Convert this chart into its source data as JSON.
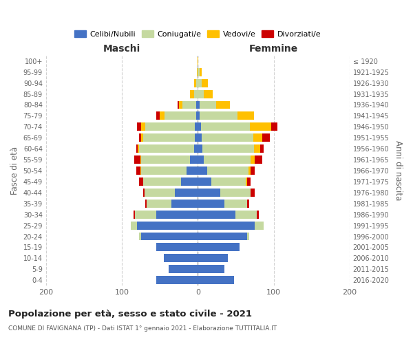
{
  "age_groups": [
    "0-4",
    "5-9",
    "10-14",
    "15-19",
    "20-24",
    "25-29",
    "30-34",
    "35-39",
    "40-44",
    "45-49",
    "50-54",
    "55-59",
    "60-64",
    "65-69",
    "70-74",
    "75-79",
    "80-84",
    "85-89",
    "90-94",
    "95-99",
    "100+"
  ],
  "birth_years": [
    "2016-2020",
    "2011-2015",
    "2006-2010",
    "2001-2005",
    "1996-2000",
    "1991-1995",
    "1986-1990",
    "1981-1985",
    "1976-1980",
    "1971-1975",
    "1966-1970",
    "1961-1965",
    "1956-1960",
    "1951-1955",
    "1946-1950",
    "1941-1945",
    "1936-1940",
    "1931-1935",
    "1926-1930",
    "1921-1925",
    "≤ 1920"
  ],
  "maschi_celibi": [
    55,
    38,
    45,
    55,
    75,
    80,
    55,
    35,
    30,
    22,
    15,
    10,
    5,
    4,
    4,
    2,
    2,
    0,
    0,
    0,
    0
  ],
  "maschi_coniugati": [
    0,
    0,
    0,
    0,
    2,
    8,
    28,
    32,
    40,
    50,
    60,
    65,
    72,
    68,
    65,
    42,
    18,
    5,
    2,
    0,
    0
  ],
  "maschi_vedovi": [
    0,
    0,
    0,
    0,
    0,
    0,
    0,
    0,
    0,
    0,
    1,
    1,
    2,
    3,
    6,
    6,
    5,
    5,
    3,
    1,
    0
  ],
  "maschi_divorziati": [
    0,
    0,
    0,
    0,
    0,
    0,
    2,
    2,
    2,
    5,
    5,
    8,
    2,
    2,
    5,
    5,
    2,
    0,
    0,
    0,
    0
  ],
  "femmine_celibi": [
    48,
    35,
    40,
    55,
    65,
    75,
    50,
    35,
    30,
    18,
    12,
    8,
    6,
    5,
    4,
    2,
    2,
    0,
    0,
    0,
    0
  ],
  "femmine_coniugati": [
    0,
    0,
    0,
    0,
    3,
    12,
    28,
    30,
    40,
    45,
    55,
    62,
    68,
    68,
    65,
    50,
    22,
    8,
    5,
    2,
    0
  ],
  "femmine_vedovi": [
    0,
    0,
    0,
    0,
    0,
    0,
    0,
    0,
    0,
    2,
    3,
    5,
    8,
    12,
    28,
    22,
    18,
    12,
    8,
    3,
    1
  ],
  "femmine_divorziati": [
    0,
    0,
    0,
    0,
    0,
    0,
    2,
    3,
    5,
    5,
    5,
    10,
    5,
    10,
    8,
    0,
    0,
    0,
    0,
    0,
    0
  ],
  "colors": {
    "celibi": "#4472c4",
    "coniugati": "#c5d9a0",
    "vedovi": "#ffc000",
    "divorziati": "#cc0000"
  },
  "legend_labels": [
    "Celibi/Nubili",
    "Coniugati/e",
    "Vedovi/e",
    "Divorziati/e"
  ],
  "xlim": 200,
  "title": "Popolazione per età, sesso e stato civile - 2021",
  "subtitle": "COMUNE DI FAVIGNANA (TP) - Dati ISTAT 1° gennaio 2021 - Elaborazione TUTTITALIA.IT",
  "ylabel_left": "Fasce di età",
  "ylabel_right": "Anni di nascita",
  "xlabel_maschi": "Maschi",
  "xlabel_femmine": "Femmine",
  "bg_color": "#ffffff",
  "grid_color": "#cccccc",
  "bar_height": 0.75
}
